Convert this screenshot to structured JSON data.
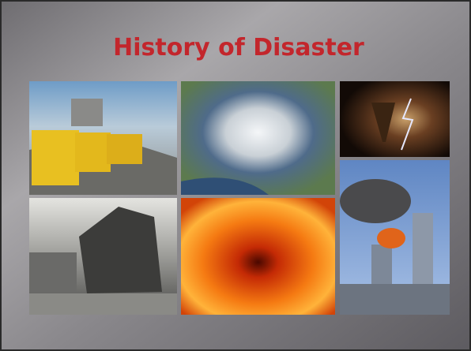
{
  "slide": {
    "title": "History of Disaster"
  }
}
